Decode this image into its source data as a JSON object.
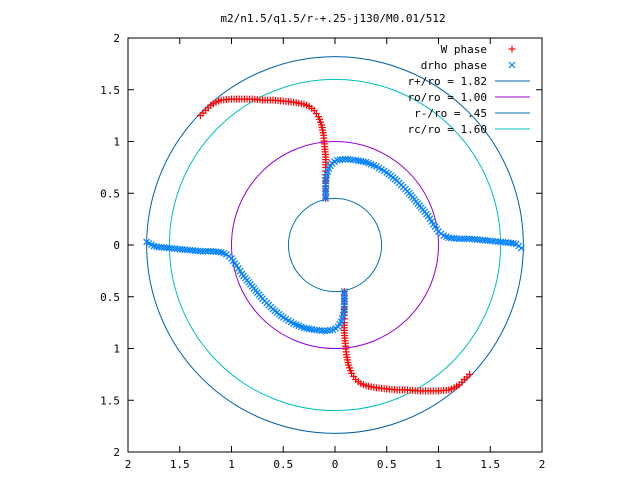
{
  "chart_data": {
    "type": "scatter",
    "title": "m2/n1.5/q1.5/r-+.25-j130/M0.01/512",
    "xlim": [
      -2,
      2
    ],
    "ylim": [
      -2,
      2
    ],
    "x_ticks": [
      "2",
      "1.5",
      "1",
      "0.5",
      "0",
      "0.5",
      "1",
      "1.5",
      "2"
    ],
    "x_tick_values": [
      -2,
      -1.5,
      -1,
      -0.5,
      0,
      0.5,
      1,
      1.5,
      2
    ],
    "y_ticks": [
      "2",
      "1.5",
      "1",
      "0.5",
      "0",
      "0.5",
      "1",
      "1.5",
      "2"
    ],
    "y_tick_values": [
      2,
      1.5,
      1,
      0.5,
      0,
      -0.5,
      -1,
      -1.5,
      -2
    ],
    "grid": false,
    "legend_position": "top-right",
    "series": [
      {
        "name": "W phase",
        "kind": "points",
        "marker": "plus",
        "color": "#ff0000",
        "x": [
          -1.3,
          -1.25,
          -1.2,
          -1.15,
          -1.1,
          -1.0,
          -0.9,
          -0.8,
          -0.7,
          -0.6,
          -0.5,
          -0.4,
          -0.3,
          -0.25,
          -0.2,
          -0.16,
          -0.13,
          -0.11,
          -0.1,
          -0.09,
          -0.09,
          -0.09,
          -0.09,
          -0.09,
          -0.09,
          -0.09,
          1.3,
          1.25,
          1.2,
          1.15,
          1.1,
          1.0,
          0.9,
          0.8,
          0.7,
          0.6,
          0.5,
          0.4,
          0.3,
          0.25,
          0.2,
          0.16,
          0.13,
          0.11,
          0.1,
          0.09,
          0.09,
          0.09,
          0.09,
          0.09,
          0.09,
          0.09
        ],
        "y": [
          1.25,
          1.3,
          1.35,
          1.38,
          1.4,
          1.41,
          1.41,
          1.41,
          1.4,
          1.4,
          1.39,
          1.38,
          1.36,
          1.34,
          1.3,
          1.24,
          1.16,
          1.06,
          0.95,
          0.85,
          0.75,
          0.68,
          0.62,
          0.57,
          0.52,
          0.45,
          -1.25,
          -1.3,
          -1.35,
          -1.38,
          -1.4,
          -1.41,
          -1.41,
          -1.41,
          -1.4,
          -1.4,
          -1.39,
          -1.38,
          -1.36,
          -1.34,
          -1.3,
          -1.24,
          -1.16,
          -1.06,
          -0.95,
          -0.85,
          -0.75,
          -0.68,
          -0.62,
          -0.57,
          -0.52,
          -0.45
        ]
      },
      {
        "name": "drho phase",
        "kind": "points",
        "marker": "cross",
        "color": "#0080ff",
        "x": [
          -0.09,
          -0.09,
          -0.09,
          -0.08,
          -0.06,
          -0.03,
          0.02,
          0.1,
          0.2,
          0.3,
          0.4,
          0.5,
          0.6,
          0.7,
          0.8,
          0.9,
          0.95,
          1.0,
          1.05,
          1.1,
          1.2,
          1.3,
          1.4,
          1.5,
          1.6,
          1.7,
          1.75,
          1.8,
          0.09,
          0.09,
          0.09,
          0.08,
          0.06,
          0.03,
          -0.02,
          -0.1,
          -0.2,
          -0.3,
          -0.4,
          -0.5,
          -0.6,
          -0.7,
          -0.8,
          -0.9,
          -0.95,
          -1.0,
          -1.05,
          -1.1,
          -1.2,
          -1.3,
          -1.4,
          -1.5,
          -1.6,
          -1.7,
          -1.75,
          -1.82
        ],
        "y": [
          0.45,
          0.55,
          0.62,
          0.68,
          0.74,
          0.79,
          0.82,
          0.83,
          0.82,
          0.8,
          0.76,
          0.7,
          0.62,
          0.52,
          0.4,
          0.28,
          0.2,
          0.13,
          0.09,
          0.07,
          0.06,
          0.06,
          0.05,
          0.04,
          0.03,
          0.02,
          0.01,
          -0.03,
          -0.45,
          -0.55,
          -0.62,
          -0.68,
          -0.74,
          -0.79,
          -0.82,
          -0.83,
          -0.82,
          -0.8,
          -0.76,
          -0.7,
          -0.62,
          -0.52,
          -0.4,
          -0.28,
          -0.2,
          -0.13,
          -0.09,
          -0.07,
          -0.06,
          -0.06,
          -0.05,
          -0.04,
          -0.03,
          -0.02,
          -0.01,
          0.03
        ]
      },
      {
        "name": "r+/ro = 1.82",
        "kind": "circle",
        "radius": 1.82,
        "color": "#0060ad"
      },
      {
        "name": "ro/ro = 1.00",
        "kind": "circle",
        "radius": 1.0,
        "color": "#9400d3"
      },
      {
        "name": "r-/ro = .45",
        "kind": "circle",
        "radius": 0.45,
        "color": "#0072b2"
      },
      {
        "name": "rc/ro = 1.60",
        "kind": "circle",
        "radius": 1.6,
        "color": "#00c0c0"
      }
    ]
  }
}
